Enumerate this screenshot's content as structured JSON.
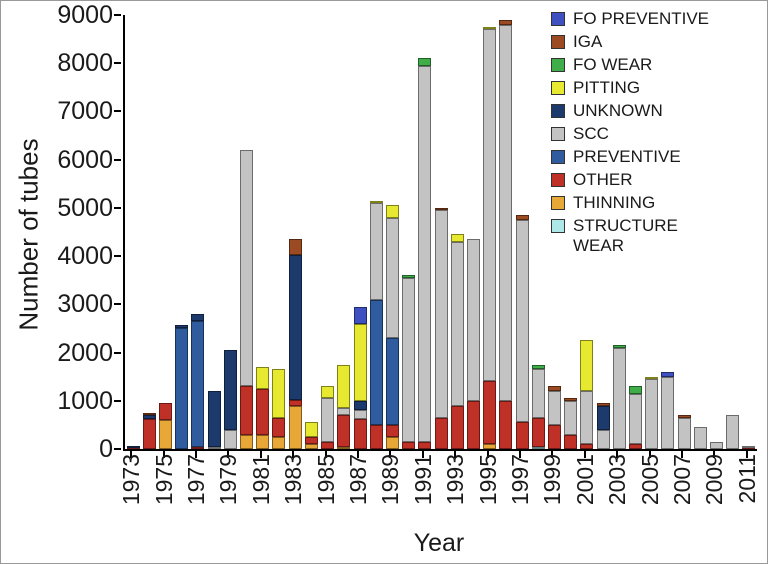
{
  "chart_data": {
    "type": "bar",
    "stacked": true,
    "title": "",
    "xlabel": "Year",
    "ylabel": "Number of tubes",
    "ylim": [
      0,
      9000
    ],
    "yticks": [
      0,
      1000,
      2000,
      3000,
      4000,
      5000,
      6000,
      7000,
      8000,
      9000
    ],
    "grid": false,
    "legend_position": "top-right",
    "categories": [
      "1973",
      "1974",
      "1975",
      "1976",
      "1977",
      "1978",
      "1979",
      "1980",
      "1981",
      "1982",
      "1983",
      "1984",
      "1985",
      "1986",
      "1987",
      "1988",
      "1989",
      "1990",
      "1991",
      "1992",
      "1993",
      "1994",
      "1995",
      "1996",
      "1997",
      "1998",
      "1999",
      "2000",
      "2001",
      "2002",
      "2003",
      "2004",
      "2005",
      "2006",
      "2007",
      "2008",
      "2009",
      "2010",
      "2011"
    ],
    "x_tick_labels": [
      "1973",
      "1975",
      "1977",
      "1979",
      "1981",
      "1983",
      "1985",
      "1987",
      "1989",
      "1991",
      "1993",
      "1995",
      "1997",
      "1999",
      "2001",
      "2003",
      "2005",
      "2007",
      "2009",
      "2011"
    ],
    "legend_order": [
      "FO PREVENTIVE",
      "IGA",
      "FO WEAR",
      "PITTING",
      "UNKNOWN",
      "SCC",
      "PREVENTIVE",
      "OTHER",
      "THINNING",
      "STRUCTURE WEAR"
    ],
    "series": [
      {
        "name": "STRUCTURE WEAR",
        "color": "#aee7e8",
        "values": [
          0,
          0,
          0,
          0,
          0,
          0,
          0,
          0,
          0,
          0,
          0,
          0,
          0,
          0,
          0,
          0,
          0,
          0,
          0,
          0,
          0,
          0,
          0,
          0,
          0,
          50,
          0,
          0,
          0,
          0,
          0,
          0,
          0,
          0,
          0,
          0,
          0,
          0,
          0
        ]
      },
      {
        "name": "THINNING",
        "color": "#e8a838",
        "values": [
          0,
          0,
          600,
          0,
          0,
          0,
          0,
          300,
          300,
          250,
          900,
          100,
          0,
          50,
          0,
          0,
          250,
          0,
          0,
          0,
          0,
          0,
          100,
          0,
          0,
          0,
          0,
          0,
          0,
          0,
          0,
          0,
          0,
          0,
          0,
          0,
          0,
          0,
          0
        ]
      },
      {
        "name": "OTHER",
        "color": "#bf3026",
        "values": [
          30,
          620,
          350,
          0,
          50,
          0,
          0,
          1000,
          950,
          400,
          120,
          150,
          150,
          650,
          620,
          500,
          250,
          150,
          150,
          650,
          900,
          1000,
          1300,
          1000,
          550,
          600,
          500,
          300,
          100,
          0,
          0,
          100,
          0,
          0,
          0,
          0,
          0,
          0,
          30
        ]
      },
      {
        "name": "PREVENTIVE",
        "color": "#2e5c9e",
        "values": [
          0,
          0,
          0,
          2500,
          2600,
          0,
          0,
          0,
          0,
          0,
          0,
          0,
          0,
          0,
          0,
          2600,
          1800,
          0,
          0,
          0,
          0,
          0,
          0,
          0,
          0,
          0,
          0,
          0,
          0,
          0,
          0,
          0,
          0,
          0,
          0,
          0,
          0,
          0,
          0
        ]
      },
      {
        "name": "SCC",
        "color": "#c3c3c3",
        "values": [
          0,
          0,
          0,
          0,
          0,
          50,
          400,
          4900,
          0,
          0,
          0,
          0,
          900,
          150,
          180,
          2000,
          2500,
          3400,
          7800,
          4300,
          3400,
          3350,
          7300,
          7800,
          4200,
          1000,
          700,
          700,
          1100,
          400,
          2100,
          1050,
          1450,
          1500,
          650,
          450,
          150,
          700,
          20
        ]
      },
      {
        "name": "UNKNOWN",
        "color": "#1d3a6d",
        "values": [
          30,
          80,
          0,
          80,
          150,
          1150,
          1650,
          0,
          0,
          0,
          3000,
          0,
          0,
          0,
          200,
          0,
          0,
          0,
          0,
          0,
          0,
          0,
          0,
          0,
          0,
          0,
          0,
          0,
          0,
          500,
          0,
          0,
          0,
          0,
          0,
          0,
          0,
          0,
          0
        ]
      },
      {
        "name": "PITTING",
        "color": "#e6e92f",
        "values": [
          0,
          0,
          0,
          0,
          0,
          0,
          0,
          0,
          450,
          1000,
          0,
          300,
          250,
          900,
          1600,
          50,
          250,
          0,
          0,
          0,
          150,
          0,
          50,
          0,
          0,
          0,
          0,
          0,
          1050,
          0,
          0,
          0,
          50,
          0,
          0,
          0,
          0,
          0,
          0
        ]
      },
      {
        "name": "FO WEAR",
        "color": "#3fae49",
        "values": [
          0,
          0,
          0,
          0,
          0,
          0,
          0,
          0,
          0,
          0,
          0,
          0,
          0,
          0,
          0,
          0,
          0,
          50,
          150,
          0,
          0,
          0,
          0,
          0,
          0,
          100,
          0,
          0,
          0,
          0,
          50,
          150,
          0,
          0,
          0,
          0,
          0,
          0,
          0
        ]
      },
      {
        "name": "IGA",
        "color": "#9c4a22",
        "values": [
          0,
          20,
          0,
          0,
          0,
          0,
          0,
          0,
          0,
          0,
          330,
          0,
          0,
          0,
          0,
          0,
          0,
          0,
          0,
          50,
          0,
          0,
          0,
          100,
          100,
          0,
          100,
          50,
          0,
          50,
          0,
          0,
          0,
          0,
          50,
          0,
          0,
          0,
          0
        ]
      },
      {
        "name": "FO PREVENTIVE",
        "color": "#3f51c1",
        "values": [
          0,
          0,
          0,
          0,
          0,
          0,
          0,
          0,
          0,
          0,
          0,
          0,
          0,
          0,
          350,
          0,
          0,
          0,
          0,
          0,
          0,
          0,
          0,
          0,
          0,
          0,
          0,
          0,
          0,
          0,
          0,
          0,
          0,
          100,
          0,
          0,
          0,
          0,
          0
        ]
      }
    ]
  }
}
